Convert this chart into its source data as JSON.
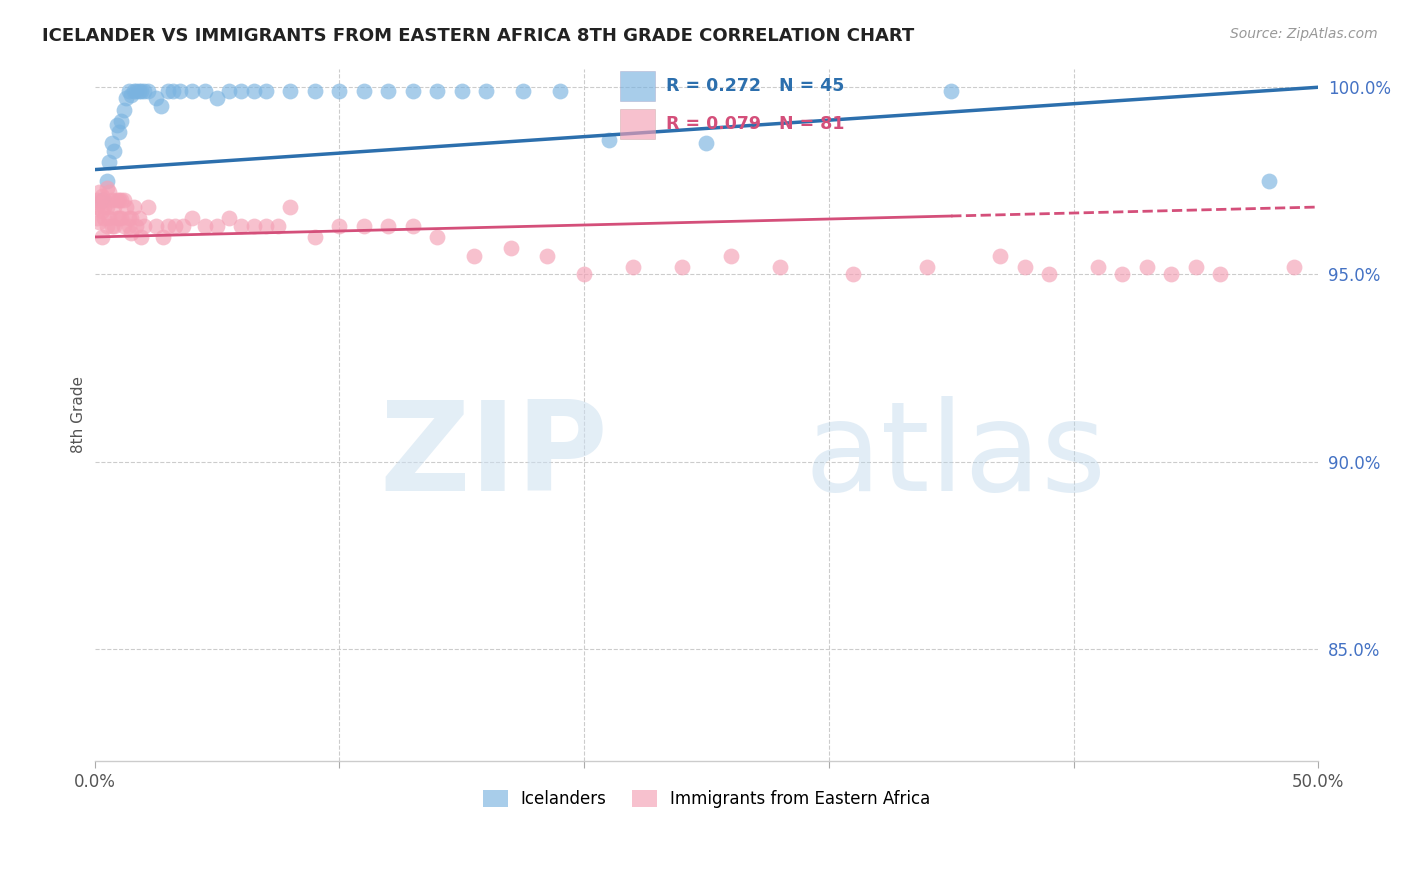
{
  "title": "ICELANDER VS IMMIGRANTS FROM EASTERN AFRICA 8TH GRADE CORRELATION CHART",
  "source": "Source: ZipAtlas.com",
  "ylabel": "8th Grade",
  "xlim": [
    0.0,
    0.5
  ],
  "ylim": [
    0.82,
    1.005
  ],
  "yticks": [
    0.85,
    0.9,
    0.95,
    1.0
  ],
  "ytick_labels": [
    "85.0%",
    "90.0%",
    "95.0%",
    "100.0%"
  ],
  "xticks": [
    0.0,
    0.1,
    0.2,
    0.3,
    0.4,
    0.5
  ],
  "xtick_labels": [
    "0.0%",
    "",
    "",
    "",
    "",
    "50.0%"
  ],
  "blue_color": "#7ab3e0",
  "pink_color": "#f4a0b5",
  "blue_line_color": "#2c6fad",
  "pink_line_color": "#d44f7a",
  "icelanders_x": [
    0.003,
    0.005,
    0.006,
    0.007,
    0.008,
    0.009,
    0.01,
    0.011,
    0.012,
    0.013,
    0.014,
    0.015,
    0.016,
    0.017,
    0.018,
    0.019,
    0.02,
    0.022,
    0.025,
    0.027,
    0.03,
    0.032,
    0.035,
    0.04,
    0.045,
    0.05,
    0.055,
    0.06,
    0.065,
    0.07,
    0.08,
    0.09,
    0.1,
    0.11,
    0.12,
    0.13,
    0.14,
    0.15,
    0.16,
    0.175,
    0.19,
    0.21,
    0.25,
    0.35,
    0.48
  ],
  "icelanders_y": [
    0.97,
    0.975,
    0.98,
    0.985,
    0.983,
    0.99,
    0.988,
    0.991,
    0.994,
    0.997,
    0.999,
    0.998,
    0.999,
    0.999,
    0.999,
    0.999,
    0.999,
    0.999,
    0.997,
    0.995,
    0.999,
    0.999,
    0.999,
    0.999,
    0.999,
    0.997,
    0.999,
    0.999,
    0.999,
    0.999,
    0.999,
    0.999,
    0.999,
    0.999,
    0.999,
    0.999,
    0.999,
    0.999,
    0.999,
    0.999,
    0.999,
    0.986,
    0.985,
    0.999,
    0.975
  ],
  "immigrants_x": [
    0.001,
    0.001,
    0.001,
    0.002,
    0.002,
    0.002,
    0.003,
    0.003,
    0.003,
    0.004,
    0.004,
    0.004,
    0.005,
    0.005,
    0.005,
    0.006,
    0.006,
    0.007,
    0.007,
    0.008,
    0.008,
    0.009,
    0.009,
    0.01,
    0.01,
    0.011,
    0.011,
    0.012,
    0.012,
    0.013,
    0.014,
    0.014,
    0.015,
    0.015,
    0.016,
    0.017,
    0.018,
    0.019,
    0.02,
    0.022,
    0.025,
    0.028,
    0.03,
    0.033,
    0.036,
    0.04,
    0.045,
    0.05,
    0.055,
    0.06,
    0.065,
    0.07,
    0.075,
    0.08,
    0.09,
    0.1,
    0.11,
    0.12,
    0.13,
    0.14,
    0.155,
    0.17,
    0.185,
    0.2,
    0.22,
    0.24,
    0.26,
    0.28,
    0.31,
    0.34,
    0.37,
    0.38,
    0.39,
    0.41,
    0.42,
    0.43,
    0.44,
    0.45,
    0.46,
    0.49
  ],
  "immigrants_y": [
    0.968,
    0.97,
    0.965,
    0.972,
    0.969,
    0.964,
    0.971,
    0.967,
    0.96,
    0.968,
    0.965,
    0.97,
    0.973,
    0.968,
    0.963,
    0.972,
    0.965,
    0.97,
    0.963,
    0.968,
    0.963,
    0.97,
    0.965,
    0.97,
    0.965,
    0.97,
    0.965,
    0.97,
    0.963,
    0.968,
    0.965,
    0.963,
    0.965,
    0.961,
    0.968,
    0.963,
    0.965,
    0.96,
    0.963,
    0.968,
    0.963,
    0.96,
    0.963,
    0.963,
    0.963,
    0.965,
    0.963,
    0.963,
    0.965,
    0.963,
    0.963,
    0.963,
    0.963,
    0.968,
    0.96,
    0.963,
    0.963,
    0.963,
    0.963,
    0.96,
    0.955,
    0.957,
    0.955,
    0.95,
    0.952,
    0.952,
    0.955,
    0.952,
    0.95,
    0.952,
    0.955,
    0.952,
    0.95,
    0.952,
    0.95,
    0.952,
    0.95,
    0.952,
    0.95,
    0.952
  ]
}
